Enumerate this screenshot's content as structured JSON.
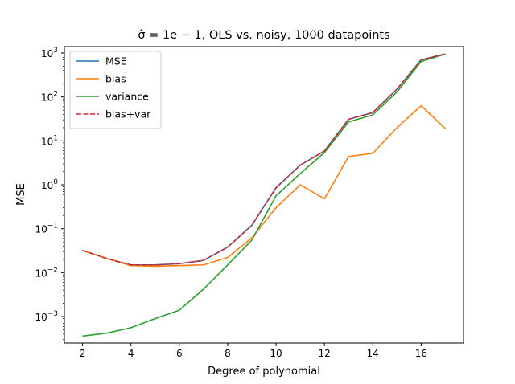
{
  "chart_data": {
    "type": "line",
    "title": "σ̂ = 1e − 1, OLS vs. noisy, 1000 datapoints",
    "xlabel": "Degree of polynomial",
    "ylabel": "MSE",
    "x": [
      2,
      3,
      4,
      5,
      6,
      7,
      8,
      9,
      10,
      11,
      12,
      13,
      14,
      15,
      16,
      17
    ],
    "xlim": [
      1.25,
      17.75
    ],
    "xticks": [
      2,
      4,
      6,
      8,
      10,
      12,
      14,
      16
    ],
    "xtick_labels": [
      "2",
      "4",
      "6",
      "8",
      "10",
      "12",
      "14",
      "16"
    ],
    "yscale": "log",
    "ylim": [
      0.00025,
      1400
    ],
    "yticks": [
      0.001,
      0.01,
      0.1,
      1,
      10,
      100,
      1000
    ],
    "ytick_labels": [
      {
        "base": "10",
        "exp": "−3"
      },
      {
        "base": "10",
        "exp": "−2"
      },
      {
        "base": "10",
        "exp": "−1"
      },
      {
        "base": "10",
        "exp": "0"
      },
      {
        "base": "10",
        "exp": "1"
      },
      {
        "base": "10",
        "exp": "2"
      },
      {
        "base": "10",
        "exp": "3"
      }
    ],
    "grid": false,
    "legend_position": "top-left",
    "series": [
      {
        "name": "MSE",
        "color": "#1f77b4",
        "dash": "solid",
        "values": [
          0.032,
          0.021,
          0.015,
          0.015,
          0.016,
          0.019,
          0.038,
          0.12,
          0.85,
          2.8,
          5.9,
          31,
          44,
          150,
          700,
          950
        ]
      },
      {
        "name": "bias",
        "color": "#ff7f0e",
        "dash": "solid",
        "values": [
          0.032,
          0.021,
          0.0145,
          0.014,
          0.0145,
          0.015,
          0.022,
          0.062,
          0.3,
          1.0,
          0.48,
          4.4,
          5.2,
          20,
          63,
          19
        ]
      },
      {
        "name": "variance",
        "color": "#2ca02c",
        "dash": "solid",
        "values": [
          0.00036,
          0.00042,
          0.00056,
          0.0009,
          0.0014,
          0.0042,
          0.015,
          0.055,
          0.56,
          1.8,
          5.4,
          27,
          39,
          130,
          640,
          950
        ]
      },
      {
        "name": "bias+var",
        "color": "#d62728",
        "dash": "dashed",
        "values": [
          0.032,
          0.021,
          0.015,
          0.015,
          0.016,
          0.019,
          0.038,
          0.12,
          0.86,
          2.8,
          5.9,
          31,
          44,
          150,
          700,
          950
        ]
      }
    ]
  }
}
